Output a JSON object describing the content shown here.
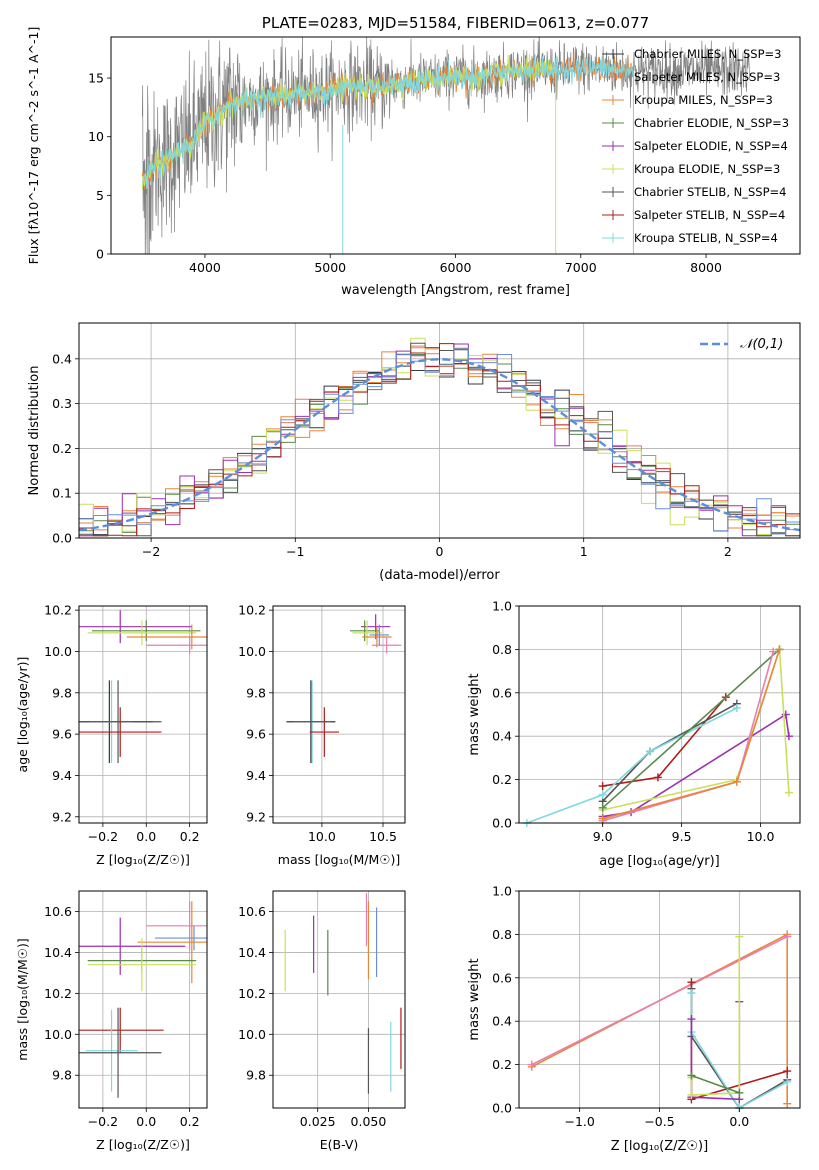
{
  "figure_title": "PLATE=0283, MJD=51584, FIBERID=0613, z=0.077",
  "colors": {
    "Chabrier MILES": "#2f3a4a",
    "Salpeter MILES": "#e07a5f",
    "Kroupa MILES": "#e8873a",
    "Chabrier ELODIE": "#5a8a4a",
    "Salpeter ELODIE": "#9b30b0",
    "Kroupa ELODIE": "#c8e05a",
    "Chabrier STELIB": "#555555",
    "Salpeter STELIB": "#b01c1c",
    "Kroupa STELIB": "#7fd8df",
    "data": "#808080",
    "gauss": "#5b8fd9",
    "pink": "#e87fb0",
    "blue": "#6a8fd8"
  },
  "chart_data": [
    {
      "type": "line",
      "panel": "spectrum",
      "title": "PLATE=0283, MJD=51584, FIBERID=0613, z=0.077",
      "xlabel": "wavelength [Angstrom, rest frame]",
      "ylabel": "Flux [f_λ10^-17 erg cm^-2 s^-1 A^-1]",
      "xlim": [
        3250,
        8750
      ],
      "ylim": [
        0,
        18.5
      ],
      "xticks": [
        4000,
        5000,
        6000,
        7000,
        8000
      ],
      "yticks": [
        0,
        5,
        10,
        15
      ],
      "legend": [
        "Chabrier MILES, N_SSP=3",
        "Salpeter MILES, N_SSP=3",
        "Kroupa MILES, N_SSP=3",
        "Chabrier ELODIE, N_SSP=3",
        "Salpeter ELODIE, N_SSP=4",
        "Kroupa ELODIE, N_SSP=3",
        "Chabrier STELIB, N_SSP=4",
        "Salpeter STELIB, N_SSP=4",
        "Kroupa STELIB, N_SSP=4"
      ],
      "legend_position": "right",
      "continuum": {
        "x": [
          3500,
          3600,
          3700,
          3800,
          3900,
          4000,
          4100,
          4200,
          4400,
          4600,
          4800,
          5000,
          5200,
          5400,
          5600,
          5800,
          6000,
          6200,
          6400,
          6600,
          6800,
          7000,
          7200,
          7400
        ],
        "y": [
          6.0,
          7.5,
          8.0,
          8.8,
          9.5,
          11.0,
          12.0,
          12.8,
          13.2,
          13.5,
          13.7,
          14.0,
          14.3,
          14.2,
          14.7,
          14.9,
          15.2,
          15.1,
          15.5,
          15.7,
          15.6,
          15.9,
          15.8,
          15.6
        ]
      }
    },
    {
      "type": "line",
      "panel": "residual-histogram",
      "xlabel": "(data-model)/error",
      "ylabel": "Normed distribution",
      "xlim": [
        -2.5,
        2.5
      ],
      "ylim": [
        0,
        0.48
      ],
      "xticks": [
        -2,
        -1,
        0,
        1,
        2
      ],
      "yticks": [
        0.0,
        0.1,
        0.2,
        0.3,
        0.4
      ],
      "legend": [
        "𝒩(0,1)"
      ],
      "legend_position": "top-right",
      "bin_width": 0.1,
      "gaussian": {
        "mean": 0,
        "sigma": 1
      }
    },
    {
      "type": "scatter",
      "panel": "age-vs-metallicity",
      "xlabel": "Z [log10(Z/Z☉)]",
      "ylabel": "age [log10(age/yr)]",
      "xlim": [
        -0.31,
        0.28
      ],
      "ylim": [
        9.17,
        10.22
      ],
      "xticks": [
        -0.2,
        0.0,
        0.2
      ],
      "yticks": [
        9.2,
        9.4,
        9.6,
        9.8,
        10.0,
        10.2
      ],
      "points": [
        {
          "series": "Salpeter ELODIE",
          "x": -0.12,
          "y": 10.12,
          "xerr": 0.33,
          "yerr": 0.08
        },
        {
          "series": "Chabrier ELODIE",
          "x": 0.0,
          "y": 10.1,
          "xerr": 0.25,
          "yerr": 0.05
        },
        {
          "series": "Kroupa ELODIE",
          "x": -0.02,
          "y": 10.09,
          "xerr": 0.25,
          "yerr": 0.06
        },
        {
          "series": "Kroupa MILES",
          "x": 0.21,
          "y": 10.07,
          "xerr": 0.3,
          "yerr": 0.06
        },
        {
          "series": "pink",
          "x": 0.2,
          "y": 10.03,
          "xerr": 0.2,
          "yerr": 0.04
        },
        {
          "series": "Chabrier MILES",
          "x": -0.17,
          "y": 9.66,
          "xerr": 0.2,
          "yerr": 0.2
        },
        {
          "series": "Kroupa STELIB",
          "x": -0.16,
          "y": 9.66,
          "xerr": 0.1,
          "yerr": 0.2
        },
        {
          "series": "Chabrier STELIB",
          "x": -0.13,
          "y": 9.66,
          "xerr": 0.2,
          "yerr": 0.2
        },
        {
          "series": "Salpeter STELIB",
          "x": -0.12,
          "y": 9.61,
          "xerr": 0.19,
          "yerr": 0.12
        }
      ]
    },
    {
      "type": "scatter",
      "panel": "age-vs-mass",
      "xlabel": "mass [log10(M/M☉)]",
      "ylabel": "",
      "xlim": [
        9.6,
        10.68
      ],
      "ylim": [
        9.17,
        10.22
      ],
      "xticks": [
        10.0,
        10.5
      ],
      "yticks": [
        9.2,
        9.4,
        9.6,
        9.8,
        10.0,
        10.2
      ],
      "points": [
        {
          "series": "Salpeter ELODIE",
          "x": 10.44,
          "y": 10.12,
          "xerr": 0.12,
          "yerr": 0.06
        },
        {
          "series": "Chabrier ELODIE",
          "x": 10.35,
          "y": 10.1,
          "xerr": 0.12,
          "yerr": 0.05
        },
        {
          "series": "Kroupa ELODIE",
          "x": 10.37,
          "y": 10.09,
          "xerr": 0.12,
          "yerr": 0.06
        },
        {
          "series": "Kroupa MILES",
          "x": 10.45,
          "y": 10.07,
          "xerr": 0.12,
          "yerr": 0.05
        },
        {
          "series": "pink",
          "x": 10.53,
          "y": 10.03,
          "xerr": 0.12,
          "yerr": 0.04
        },
        {
          "series": "blue",
          "x": 10.47,
          "y": 10.08,
          "xerr": 0.08,
          "yerr": 0.05
        },
        {
          "series": "Chabrier MILES",
          "x": 9.91,
          "y": 9.66,
          "xerr": 0.2,
          "yerr": 0.2
        },
        {
          "series": "Kroupa STELIB",
          "x": 9.92,
          "y": 9.66,
          "xerr": 0.15,
          "yerr": 0.2
        },
        {
          "series": "Chabrier STELIB",
          "x": 9.91,
          "y": 9.66,
          "xerr": 0.2,
          "yerr": 0.2
        },
        {
          "series": "Salpeter STELIB",
          "x": 10.02,
          "y": 9.61,
          "xerr": 0.12,
          "yerr": 0.12
        }
      ]
    },
    {
      "type": "line",
      "panel": "mass-weight-vs-age",
      "xlabel": "age [log10(age/yr)]",
      "ylabel": "mass weight",
      "xlim": [
        8.47,
        10.25
      ],
      "ylim": [
        0,
        1
      ],
      "xticks": [
        9.0,
        9.5,
        10.0
      ],
      "yticks": [
        0.0,
        0.2,
        0.4,
        0.6,
        0.8,
        1.0
      ],
      "series": [
        {
          "name": "Salpeter ELODIE",
          "x": [
            9.0,
            9.18,
            10.16,
            10.18
          ],
          "y": [
            0.03,
            0.05,
            0.5,
            0.4
          ]
        },
        {
          "name": "Kroupa ELODIE",
          "x": [
            9.0,
            9.85,
            10.12,
            10.18
          ],
          "y": [
            0.06,
            0.2,
            0.8,
            0.14
          ]
        },
        {
          "name": "Salpeter STELIB",
          "x": [
            9.0,
            9.35,
            9.78
          ],
          "y": [
            0.17,
            0.21,
            0.58
          ]
        },
        {
          "name": "Chabrier STELIB",
          "x": [
            9.0,
            9.3,
            9.85
          ],
          "y": [
            0.1,
            0.33,
            0.55
          ]
        },
        {
          "name": "Kroupa STELIB",
          "x": [
            8.52,
            9.0,
            9.3,
            9.85
          ],
          "y": [
            0.0,
            0.13,
            0.33,
            0.53
          ]
        },
        {
          "name": "Chabrier ELODIE",
          "x": [
            9.0,
            10.12
          ],
          "y": [
            0.07,
            0.8
          ]
        },
        {
          "name": "pink",
          "x": [
            9.0,
            9.85,
            10.08
          ],
          "y": [
            0.01,
            0.19,
            0.79
          ]
        },
        {
          "name": "Kroupa MILES",
          "x": [
            9.0,
            9.85,
            10.12
          ],
          "y": [
            0.02,
            0.19,
            0.8
          ]
        }
      ]
    },
    {
      "type": "scatter",
      "panel": "mass-vs-metallicity",
      "xlabel": "Z [log10(Z/Z☉)]",
      "ylabel": "mass [log10(M/M☉)]",
      "xlim": [
        -0.31,
        0.28
      ],
      "ylim": [
        9.64,
        10.7
      ],
      "xticks": [
        -0.2,
        0.0,
        0.2
      ],
      "yticks": [
        9.8,
        10.0,
        10.2,
        10.4,
        10.6
      ],
      "points": [
        {
          "series": "pink",
          "x": 0.2,
          "y": 10.53,
          "xerr": 0.2,
          "yerr": 0.12
        },
        {
          "series": "blue",
          "x": 0.22,
          "y": 10.47,
          "xerr": 0.18,
          "yerr": 0.06
        },
        {
          "series": "Kroupa MILES",
          "x": 0.21,
          "y": 10.45,
          "xerr": 0.25,
          "yerr": 0.2
        },
        {
          "series": "Salpeter ELODIE",
          "x": -0.12,
          "y": 10.43,
          "xerr": 0.3,
          "yerr": 0.14
        },
        {
          "series": "Chabrier ELODIE",
          "x": -0.02,
          "y": 10.36,
          "xerr": 0.25,
          "yerr": 0.06
        },
        {
          "series": "Kroupa ELODIE",
          "x": -0.02,
          "y": 10.34,
          "xerr": 0.25,
          "yerr": 0.13
        },
        {
          "series": "Salpeter STELIB",
          "x": -0.12,
          "y": 10.02,
          "xerr": 0.2,
          "yerr": 0.11
        },
        {
          "series": "Kroupa STELIB",
          "x": -0.16,
          "y": 9.92,
          "xerr": 0.12,
          "yerr": 0.2
        },
        {
          "series": "Chabrier STELIB",
          "x": -0.13,
          "y": 9.91,
          "xerr": 0.2,
          "yerr": 0.22
        }
      ]
    },
    {
      "type": "scatter",
      "panel": "mass-vs-extinction",
      "xlabel": "E(B-V)",
      "ylabel": "",
      "xlim": [
        0.003,
        0.068
      ],
      "ylim": [
        9.64,
        10.7
      ],
      "xticks": [
        0.025,
        0.05
      ],
      "yticks": [
        9.8,
        10.0,
        10.2,
        10.4,
        10.6
      ],
      "points": [
        {
          "series": "Kroupa ELODIE",
          "x": 0.009,
          "y": 10.36,
          "yerr": 0.15
        },
        {
          "series": "Salpeter ELODIE",
          "x": 0.023,
          "y": 10.44,
          "yerr": 0.14
        },
        {
          "series": "Chabrier ELODIE",
          "x": 0.03,
          "y": 10.35,
          "yerr": 0.16
        },
        {
          "series": "pink",
          "x": 0.049,
          "y": 10.56,
          "yerr": 0.13
        },
        {
          "series": "Kroupa MILES",
          "x": 0.05,
          "y": 10.46,
          "yerr": 0.19
        },
        {
          "series": "blue",
          "x": 0.054,
          "y": 10.45,
          "yerr": 0.17
        },
        {
          "series": "Chabrier STELIB",
          "x": 0.05,
          "y": 9.87,
          "yerr": 0.16
        },
        {
          "series": "Kroupa STELIB",
          "x": 0.061,
          "y": 9.89,
          "yerr": 0.17
        },
        {
          "series": "Salpeter STELIB",
          "x": 0.066,
          "y": 9.98,
          "yerr": 0.15
        }
      ]
    },
    {
      "type": "line",
      "panel": "mass-weight-vs-metallicity",
      "xlabel": "Z [log10(Z/Z☉)]",
      "ylabel": "mass weight",
      "xlim": [
        -1.38,
        0.38
      ],
      "ylim": [
        0,
        1
      ],
      "xticks": [
        -1.0,
        -0.5,
        0.0
      ],
      "yticks": [
        0.0,
        0.2,
        0.4,
        0.6,
        0.8,
        1.0
      ],
      "series": [
        {
          "name": "Kroupa MILES",
          "x": [
            -1.3,
            0.3,
            0.3
          ],
          "y": [
            0.19,
            0.8,
            0.02
          ]
        },
        {
          "name": "pink",
          "x": [
            -1.3,
            0.3
          ],
          "y": [
            0.2,
            0.79
          ]
        },
        {
          "name": "Salpeter STELIB",
          "x": [
            -0.3,
            -0.3,
            0.3
          ],
          "y": [
            0.58,
            0.04,
            0.17
          ]
        },
        {
          "name": "Chabrier STELIB",
          "x": [
            -0.3,
            -0.3,
            0.0,
            0.3
          ],
          "y": [
            0.55,
            0.33,
            0.0,
            0.13
          ]
        },
        {
          "name": "Kroupa STELIB",
          "x": [
            -0.3,
            -0.3,
            0.0,
            0.3
          ],
          "y": [
            0.53,
            0.35,
            0.0,
            0.12
          ]
        },
        {
          "name": "Salpeter ELODIE",
          "x": [
            -0.3,
            -0.3,
            0.0,
            0.0
          ],
          "y": [
            0.41,
            0.05,
            0.04,
            0.49
          ]
        },
        {
          "name": "Kroupa ELODIE",
          "x": [
            -0.3,
            -0.3,
            0.0,
            0.0
          ],
          "y": [
            0.14,
            0.06,
            0.07,
            0.79
          ]
        },
        {
          "name": "Chabrier ELODIE",
          "x": [
            -0.3,
            0.0
          ],
          "y": [
            0.15,
            0.07
          ]
        }
      ]
    }
  ]
}
